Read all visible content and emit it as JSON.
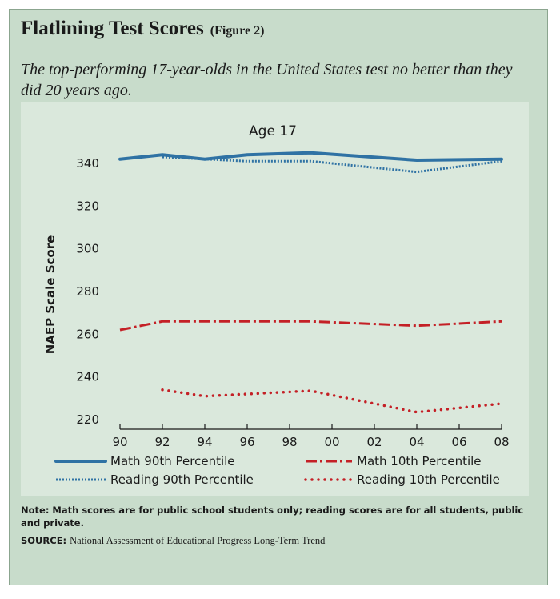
{
  "figure": {
    "title": "Flatlining Test Scores",
    "figure_label": "(Figure 2)",
    "subtitle": "The top-performing 17-year-olds in the United States test no better than they did 20 years ago.",
    "note": "Note: Math scores are for public school students only; reading scores are for all students, public and private.",
    "source_label": "SOURCE:",
    "source_text": "National Assessment of Educational Progress Long-Term Trend"
  },
  "chart_data": {
    "type": "line",
    "title": "Age 17",
    "xlabel": "",
    "ylabel": "NAEP Scale Score",
    "xlim": [
      1990,
      2008
    ],
    "ylim": [
      220,
      344
    ],
    "x_ticks": [
      1990,
      1992,
      1994,
      1996,
      1998,
      2000,
      2002,
      2004,
      2006,
      2008
    ],
    "x_tick_labels": [
      "90",
      "92",
      "94",
      "96",
      "98",
      "00",
      "02",
      "04",
      "06",
      "08"
    ],
    "y_ticks": [
      220,
      240,
      260,
      280,
      300,
      320,
      340
    ],
    "y_tick_labels": [
      "220",
      "240",
      "260",
      "280",
      "300",
      "320",
      "340"
    ],
    "grid": false,
    "legend_position": "bottom",
    "series": [
      {
        "name": "Math 90th Percentile",
        "color": "#2f72a4",
        "style": "solid",
        "x": [
          1990,
          1992,
          1994,
          1996,
          1999,
          2004,
          2008
        ],
        "y": [
          342,
          344,
          342,
          344,
          345,
          341.5,
          342
        ]
      },
      {
        "name": "Math 10th Percentile",
        "color": "#c42026",
        "style": "dashdot",
        "x": [
          1990,
          1992,
          1994,
          1996,
          1999,
          2004,
          2008
        ],
        "y": [
          262,
          266,
          266,
          266,
          266,
          264,
          266
        ]
      },
      {
        "name": "Reading 90th Percentile",
        "color": "#2f72a4",
        "style": "dotted",
        "x": [
          1992,
          1994,
          1996,
          1999,
          2004,
          2008
        ],
        "y": [
          343,
          342,
          341,
          341,
          336,
          341
        ]
      },
      {
        "name": "Reading 10th Percentile",
        "color": "#c42026",
        "style": "dotted-heavy",
        "x": [
          1992,
          1994,
          1996,
          1999,
          2004,
          2008
        ],
        "y": [
          234,
          231,
          232,
          233.5,
          223.5,
          227.5
        ]
      }
    ]
  }
}
